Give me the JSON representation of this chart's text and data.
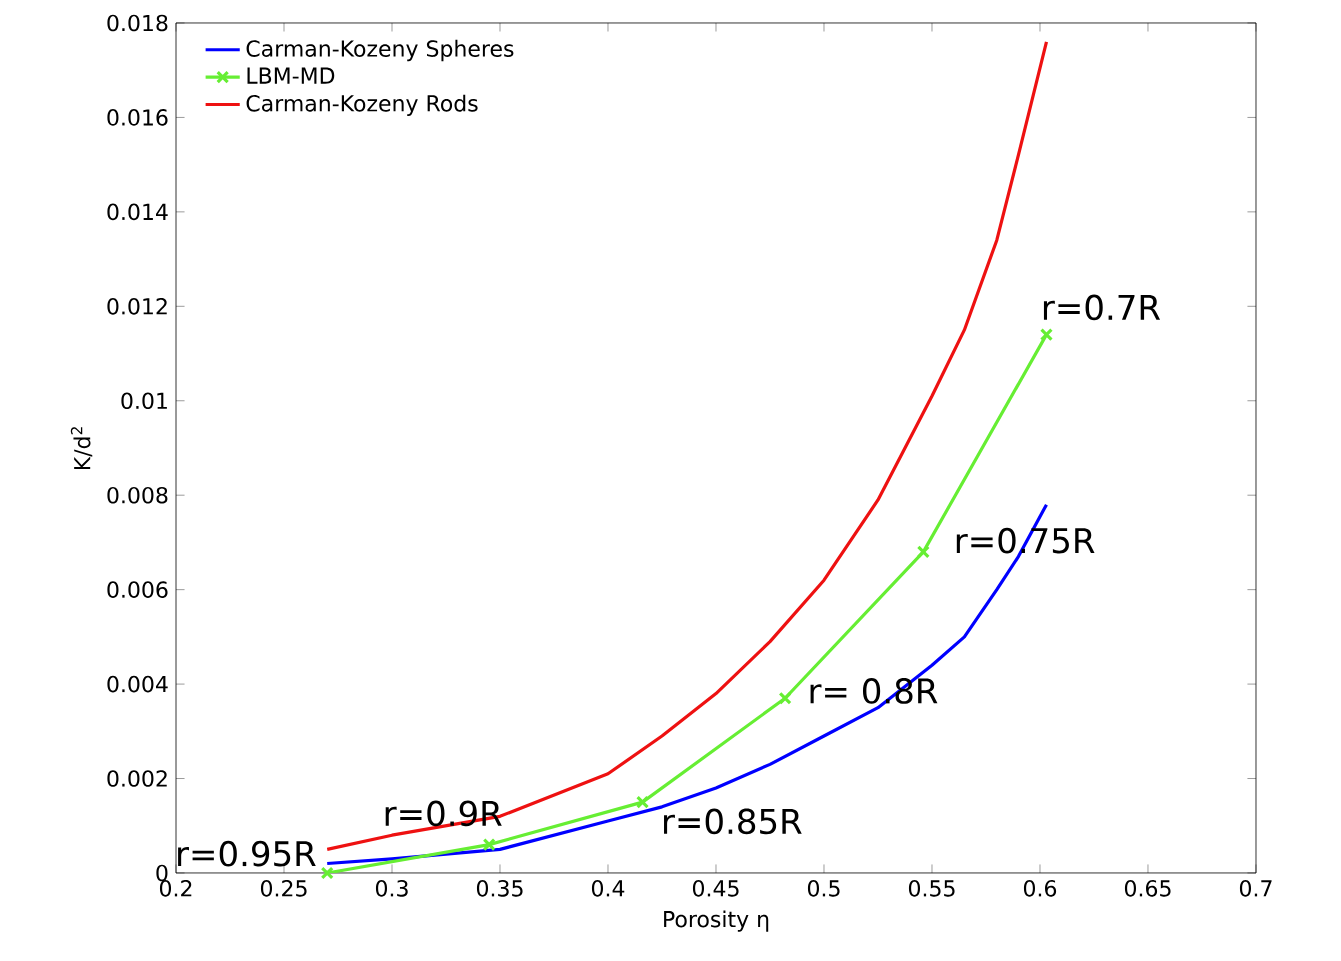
{
  "chart_data": {
    "type": "line",
    "xlabel": "Porosity η",
    "ylabel": "K/d$^{2}$",
    "xlim": [
      0.2,
      0.7
    ],
    "ylim": [
      0,
      0.018
    ],
    "xticks": [
      0.2,
      0.25,
      0.3,
      0.35,
      0.4,
      0.45,
      0.5,
      0.55,
      0.6,
      0.65,
      0.7
    ],
    "yticks": [
      0,
      0.002,
      0.004,
      0.006,
      0.008,
      0.01,
      0.012,
      0.014,
      0.016,
      0.018
    ],
    "legend": "top left",
    "grid": false,
    "series": [
      {
        "name": "Carman-Kozeny Spheres",
        "color": "#0000ff",
        "marker": "none",
        "x": [
          0.27,
          0.3,
          0.35,
          0.4,
          0.425,
          0.45,
          0.475,
          0.5,
          0.525,
          0.55,
          0.565,
          0.58,
          0.59,
          0.603
        ],
        "values": [
          0.0002,
          0.0003,
          0.0005,
          0.0011,
          0.0014,
          0.0018,
          0.0023,
          0.0029,
          0.0035,
          0.0044,
          0.005,
          0.006,
          0.0067,
          0.0078
        ]
      },
      {
        "name": "LBM-MD",
        "color": "#66ee33",
        "marker": "cross",
        "x": [
          0.27,
          0.345,
          0.416,
          0.482,
          0.546,
          0.603
        ],
        "values": [
          0,
          0.0006,
          0.0015,
          0.0037,
          0.0068,
          0.0114
        ]
      },
      {
        "name": "Carman-Kozeny Rods",
        "color": "#ee1111",
        "marker": "none",
        "x": [
          0.27,
          0.3,
          0.35,
          0.4,
          0.425,
          0.45,
          0.475,
          0.5,
          0.525,
          0.55,
          0.565,
          0.58,
          0.59,
          0.603
        ],
        "values": [
          0.0005,
          0.0008,
          0.0012,
          0.0021,
          0.0029,
          0.0038,
          0.0049,
          0.0062,
          0.0079,
          0.0101,
          0.0115,
          0.0134,
          0.0152,
          0.0176
        ]
      }
    ],
    "annotations": [
      {
        "text": "r=0.95R",
        "x": 0.27,
        "y": 0
      },
      {
        "text": "r=0.9R",
        "x": 0.345,
        "y": 0.0006
      },
      {
        "text": "r=0.85R",
        "x": 0.416,
        "y": 0.0015
      },
      {
        "text": "r= 0.8R",
        "x": 0.482,
        "y": 0.0037
      },
      {
        "text": "r=0.75R",
        "x": 0.546,
        "y": 0.0068
      },
      {
        "text": "r=0.7R",
        "x": 0.603,
        "y": 0.0114
      }
    ]
  }
}
